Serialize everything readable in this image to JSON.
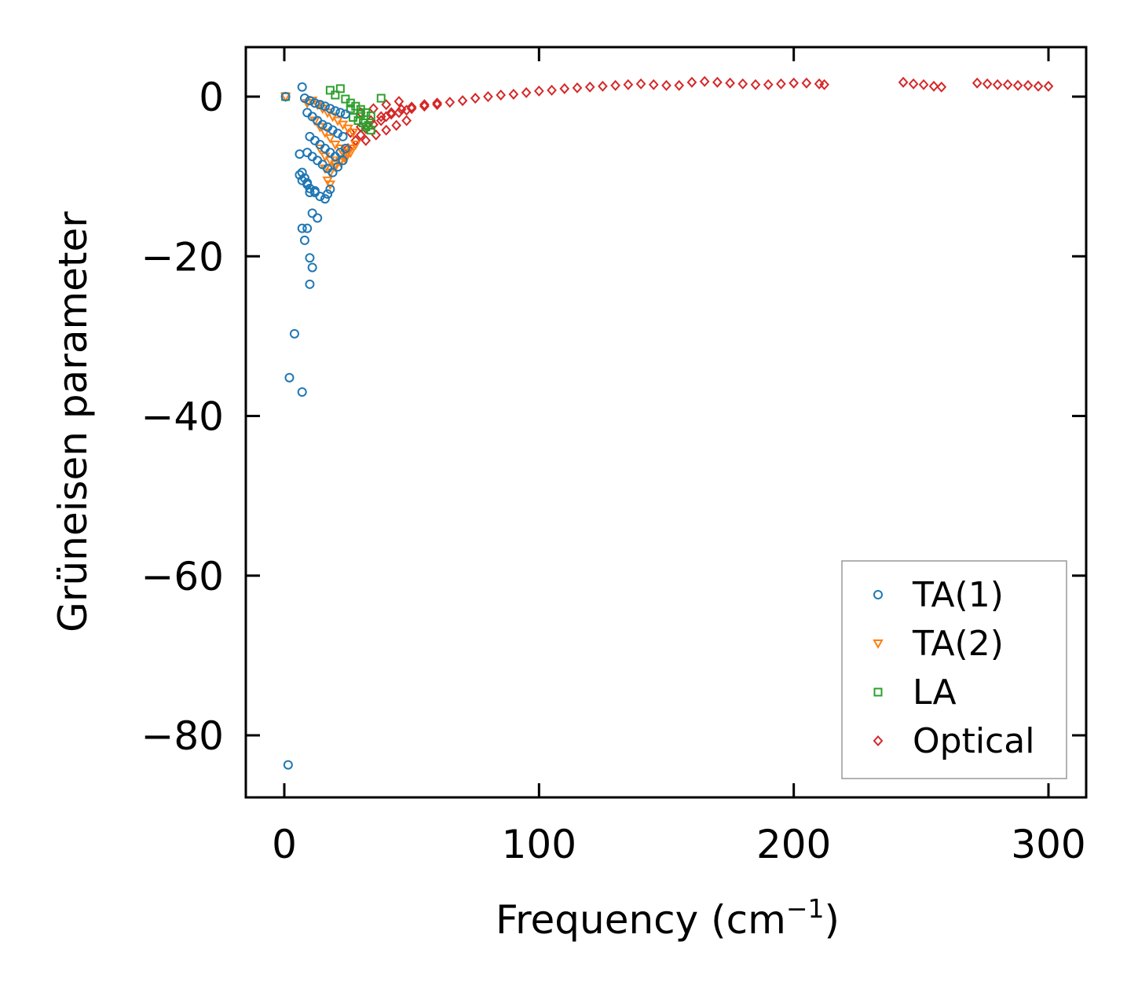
{
  "chart_data": {
    "type": "scatter",
    "title": "",
    "xlabel": "Frequency (cm",
    "xlabel_superscript": "−1",
    "xlabel_suffix": ")",
    "ylabel": "Grüneisen parameter",
    "xlim": [
      -15,
      315
    ],
    "ylim": [
      -88,
      6
    ],
    "x_ticks": [
      0,
      100,
      200,
      300
    ],
    "y_ticks": [
      0,
      -20,
      -40,
      -60,
      -80
    ],
    "x_tick_labels": [
      "0",
      "100",
      "200",
      "300"
    ],
    "y_tick_labels": [
      "0",
      "−20",
      "−40",
      "−60",
      "−80"
    ],
    "grid": false,
    "legend_position": "lower-right",
    "series": [
      {
        "name": "TA(1)",
        "marker": "circle",
        "color": "#1f77b4",
        "x": [
          0.5,
          7,
          8,
          10,
          12,
          14,
          16,
          18,
          20,
          22,
          24,
          9,
          11,
          13,
          15,
          17,
          19,
          21,
          23,
          10,
          12,
          14,
          16,
          18,
          20,
          22,
          24,
          9,
          11,
          13,
          15,
          17,
          19,
          21,
          23,
          6,
          7,
          8,
          9,
          10,
          12,
          14,
          16,
          17,
          18,
          6,
          7,
          9,
          10,
          12,
          11,
          13,
          7,
          9,
          8,
          10,
          11,
          10,
          4,
          2,
          7,
          1.5
        ],
        "y": [
          0,
          1.2,
          -0.2,
          -0.5,
          -0.8,
          -1.0,
          -1.2,
          -1.5,
          -1.8,
          -2.0,
          -2.2,
          -2.0,
          -2.5,
          -3.0,
          -3.5,
          -3.8,
          -4.2,
          -4.6,
          -5.0,
          -5.0,
          -5.5,
          -6.0,
          -6.5,
          -7.0,
          -7.5,
          -7.0,
          -6.5,
          -7.0,
          -7.5,
          -8.0,
          -8.5,
          -9.0,
          -9.5,
          -8.8,
          -8.0,
          -7.2,
          -9.5,
          -10.2,
          -11.0,
          -11.5,
          -12.0,
          -12.5,
          -12.8,
          -12.2,
          -11.6,
          -9.8,
          -10.5,
          -10.8,
          -12.0,
          -11.8,
          -14.6,
          -15.2,
          -16.5,
          -16.5,
          -18.0,
          -20.2,
          -21.4,
          -23.5,
          -29.7,
          -35.2,
          -37.0,
          -83.7
        ]
      },
      {
        "name": "TA(2)",
        "marker": "triangle-down",
        "color": "#ff7f0e",
        "x": [
          0.5,
          9,
          11,
          13,
          15,
          17,
          19,
          21,
          23,
          25,
          27,
          12,
          14,
          16,
          18,
          20,
          22,
          24,
          26,
          28,
          14,
          16,
          18,
          20,
          22,
          24,
          26,
          16,
          18,
          20,
          22,
          24,
          17,
          18
        ],
        "y": [
          0,
          -0.8,
          -0.5,
          -1.0,
          -1.5,
          -2.0,
          -2.5,
          -3.0,
          -3.5,
          -4.0,
          -4.5,
          -3.0,
          -3.8,
          -4.5,
          -5.2,
          -6.0,
          -6.5,
          -7.0,
          -6.5,
          -6.0,
          -6.5,
          -7.5,
          -8.0,
          -8.5,
          -8.0,
          -7.5,
          -7.0,
          -9.0,
          -9.5,
          -8.8,
          -8.2,
          -7.8,
          -10.5,
          -11.0
        ]
      },
      {
        "name": "LA",
        "marker": "square",
        "color": "#2ca02c",
        "x": [
          0.5,
          18,
          22,
          20,
          24,
          26,
          28,
          30,
          32,
          34,
          27,
          29,
          31,
          33,
          26,
          30,
          32,
          34,
          38
        ],
        "y": [
          0,
          0.8,
          1.0,
          0.2,
          -0.3,
          -0.8,
          -1.2,
          -1.6,
          -2.0,
          -2.4,
          -2.6,
          -3.0,
          -3.3,
          -3.6,
          -1.5,
          -2.2,
          -3.8,
          -4.2,
          -0.2
        ]
      },
      {
        "name": "Optical",
        "marker": "diamond",
        "color": "#d62728",
        "x": [
          25,
          28,
          30,
          32,
          35,
          38,
          40,
          42,
          45,
          48,
          50,
          55,
          60,
          65,
          70,
          75,
          80,
          85,
          90,
          95,
          100,
          105,
          110,
          115,
          120,
          125,
          130,
          135,
          140,
          145,
          150,
          155,
          160,
          165,
          170,
          175,
          180,
          185,
          190,
          195,
          200,
          205,
          210,
          212,
          243,
          247,
          251,
          255,
          258,
          272,
          276,
          280,
          284,
          288,
          292,
          296,
          300,
          26,
          30,
          34,
          38,
          42,
          46,
          50,
          55,
          60,
          30,
          35,
          40,
          45,
          32,
          36,
          40,
          44,
          48
        ],
        "y": [
          -6.5,
          -5.5,
          -4.8,
          -4.0,
          -3.5,
          -3.0,
          -2.5,
          -2.2,
          -2.0,
          -1.7,
          -1.5,
          -1.2,
          -1.0,
          -0.7,
          -0.5,
          -0.2,
          0.0,
          0.2,
          0.3,
          0.5,
          0.7,
          0.8,
          1.0,
          1.1,
          1.2,
          1.3,
          1.4,
          1.5,
          1.6,
          1.5,
          1.4,
          1.4,
          1.8,
          1.9,
          1.8,
          1.7,
          1.6,
          1.5,
          1.5,
          1.6,
          1.7,
          1.7,
          1.6,
          1.5,
          1.8,
          1.6,
          1.5,
          1.3,
          1.2,
          1.7,
          1.6,
          1.5,
          1.5,
          1.4,
          1.4,
          1.3,
          1.3,
          -4.5,
          -3.8,
          -3.0,
          -2.5,
          -2.0,
          -1.6,
          -1.3,
          -1.0,
          -0.8,
          -2.0,
          -1.5,
          -1.0,
          -0.6,
          -5.5,
          -4.8,
          -4.2,
          -3.6,
          -3.0
        ]
      }
    ]
  }
}
